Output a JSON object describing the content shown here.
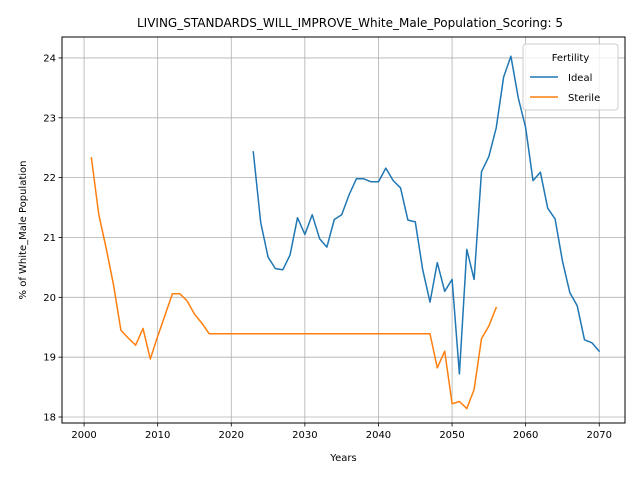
{
  "chart_data": {
    "type": "line",
    "title": "LIVING_STANDARDS_WILL_IMPROVE_White_Male_Population_Scoring: 5",
    "xlabel": "Years",
    "ylabel": "% of White_Male Population",
    "xlim": [
      1997.0,
      2073.5
    ],
    "ylim": [
      17.9,
      24.35
    ],
    "xticks": [
      2000,
      2010,
      2020,
      2030,
      2040,
      2050,
      2060,
      2070
    ],
    "yticks": [
      18,
      19,
      20,
      21,
      22,
      23,
      24
    ],
    "grid": true,
    "legend": {
      "title": "Fertility",
      "position": "top-right"
    },
    "series": [
      {
        "name": "Ideal",
        "color": "#1f77b4",
        "x": [
          2023,
          2024,
          2025,
          2026,
          2027,
          2028,
          2029,
          2030,
          2031,
          2032,
          2033,
          2034,
          2035,
          2036,
          2037,
          2038,
          2039,
          2040,
          2041,
          2042,
          2043,
          2044,
          2045,
          2046,
          2047,
          2048,
          2049,
          2050,
          2051,
          2052,
          2053,
          2054,
          2055,
          2056,
          2057,
          2058,
          2059,
          2060,
          2061,
          2062,
          2063,
          2064,
          2065,
          2066,
          2067,
          2068,
          2069,
          2070
        ],
        "values": [
          22.43,
          21.25,
          20.67,
          20.48,
          20.46,
          20.71,
          21.33,
          21.05,
          21.38,
          20.98,
          20.84,
          21.3,
          21.38,
          21.71,
          21.98,
          21.98,
          21.93,
          21.93,
          22.16,
          21.95,
          21.83,
          21.29,
          21.26,
          20.47,
          19.92,
          20.58,
          20.1,
          20.3,
          18.72,
          20.8,
          20.3,
          22.1,
          22.35,
          22.83,
          23.68,
          24.03,
          23.33,
          22.84,
          21.95,
          22.09,
          21.49,
          21.31,
          20.61,
          20.08,
          19.86,
          19.29,
          19.24,
          19.1
        ]
      },
      {
        "name": "Sterile",
        "color": "#ff7f0e",
        "x": [
          2001,
          2002,
          2003,
          2004,
          2005,
          2006,
          2007,
          2008,
          2009,
          2010,
          2011,
          2012,
          2013,
          2014,
          2015,
          2016,
          2017,
          2018,
          2019,
          2020,
          2021,
          2022,
          2023,
          2024,
          2025,
          2026,
          2027,
          2028,
          2029,
          2030,
          2031,
          2032,
          2033,
          2034,
          2035,
          2036,
          2037,
          2038,
          2039,
          2040,
          2041,
          2042,
          2043,
          2044,
          2045,
          2046,
          2047,
          2048,
          2049,
          2050,
          2051,
          2052,
          2053,
          2054,
          2055,
          2056
        ],
        "values": [
          22.33,
          21.38,
          20.82,
          20.21,
          19.45,
          19.32,
          19.2,
          19.48,
          18.97,
          19.35,
          19.7,
          20.06,
          20.06,
          19.94,
          19.72,
          19.57,
          19.39,
          19.39,
          19.39,
          19.39,
          19.39,
          19.39,
          19.39,
          19.39,
          19.39,
          19.39,
          19.39,
          19.39,
          19.39,
          19.39,
          19.39,
          19.39,
          19.39,
          19.39,
          19.39,
          19.39,
          19.39,
          19.39,
          19.39,
          19.39,
          19.39,
          19.39,
          19.39,
          19.39,
          19.39,
          19.39,
          19.39,
          18.82,
          19.1,
          18.22,
          18.26,
          18.14,
          18.46,
          19.31,
          19.52,
          19.83
        ]
      }
    ]
  }
}
